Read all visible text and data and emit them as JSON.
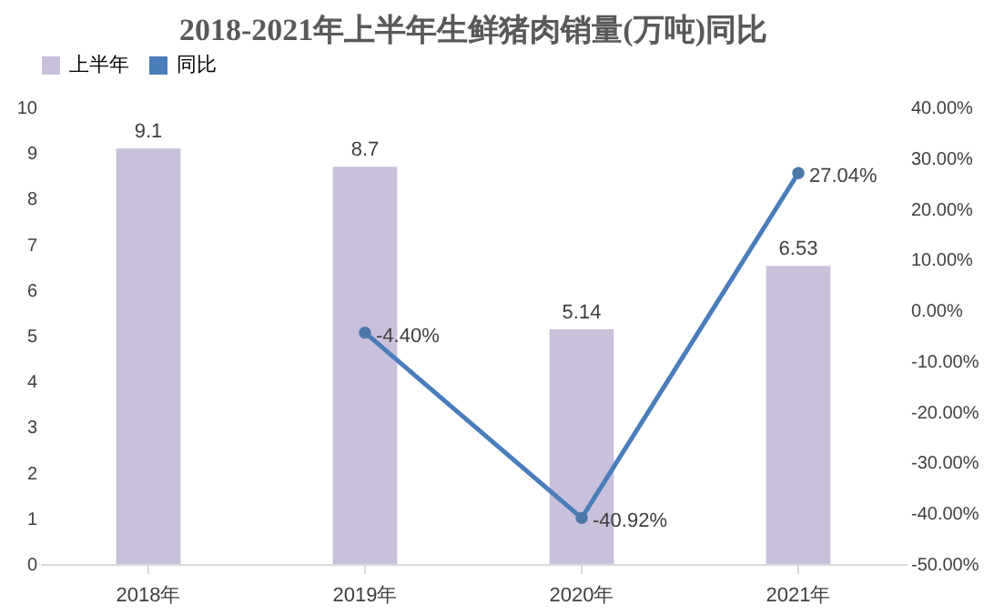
{
  "chart_data": {
    "type": "bar",
    "title": "2018-2021年上半年生鲜猪肉销量(万吨)同比",
    "categories": [
      "2018年",
      "2019年",
      "2020年",
      "2021年"
    ],
    "series": [
      {
        "name": "上半年",
        "color": "#c9c0dc",
        "values": [
          9.1,
          8.7,
          5.14,
          6.53
        ]
      },
      {
        "name": "同比",
        "type": "line",
        "axis": "y2",
        "color": "#4a7ebb",
        "values": [
          null,
          -4.4,
          -40.92,
          27.04
        ],
        "value_labels": [
          null,
          "-4.40%",
          "-40.92%",
          "27.04%"
        ]
      }
    ],
    "data_labels": true,
    "marker": "circle",
    "legend": "top",
    "grid": false,
    "ylim": [
      0,
      10
    ],
    "yticks": [
      0,
      1,
      2,
      3,
      4,
      5,
      6,
      7,
      8,
      9,
      10
    ],
    "y2lim": [
      -50,
      40
    ],
    "y2ticks": [
      {
        "value": -50,
        "label": "-50.00%"
      },
      {
        "value": -40,
        "label": "-40.00%"
      },
      {
        "value": -30,
        "label": "-30.00%"
      },
      {
        "value": -20,
        "label": "-20.00%"
      },
      {
        "value": -10,
        "label": "-10.00%"
      },
      {
        "value": 0,
        "label": "0.00%"
      },
      {
        "value": 10,
        "label": "10.00%"
      },
      {
        "value": 20,
        "label": "20.00%"
      },
      {
        "value": 30,
        "label": "30.00%"
      },
      {
        "value": 40,
        "label": "40.00%"
      }
    ]
  }
}
